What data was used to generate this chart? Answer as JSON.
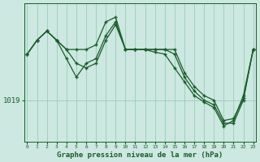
{
  "xlabel": "Graphe pression niveau de la mer (hPa)",
  "background_color": "#cce8e0",
  "plot_bg_color": "#cce8e0",
  "grid_color": "#99ccbb",
  "line_color": "#1a5c2a",
  "marker_color": "#1a5c2a",
  "hours": [
    0,
    1,
    2,
    3,
    4,
    5,
    6,
    7,
    8,
    9,
    10,
    11,
    12,
    13,
    14,
    15,
    16,
    17,
    18,
    19,
    20,
    21,
    22,
    23
  ],
  "series1": [
    1024.0,
    1025.5,
    1026.5,
    1025.5,
    1024.5,
    1024.5,
    1024.5,
    1025.0,
    1027.5,
    1028.0,
    1024.5,
    1024.5,
    1024.5,
    1024.5,
    1024.5,
    1024.5,
    1022.0,
    1020.5,
    1019.5,
    1019.0,
    1016.8,
    1017.0,
    1019.2,
    1024.5
  ],
  "series2": [
    1024.0,
    1025.5,
    1026.5,
    1025.5,
    1024.5,
    1023.0,
    1022.5,
    1023.0,
    1025.5,
    1027.2,
    1024.5,
    1024.5,
    1024.5,
    1024.5,
    1024.5,
    1024.0,
    1021.5,
    1020.0,
    1019.0,
    1018.5,
    1016.5,
    1016.5,
    1019.0,
    1024.5
  ],
  "series3": [
    1024.0,
    1025.5,
    1026.5,
    1025.5,
    1023.5,
    1021.5,
    1023.0,
    1023.5,
    1026.0,
    1027.5,
    1024.5,
    1024.5,
    1024.5,
    1024.2,
    1024.0,
    1022.5,
    1021.0,
    1019.5,
    1018.8,
    1018.2,
    1016.2,
    1016.8,
    1019.5,
    1024.5
  ],
  "ytick_value": 1019,
  "ylim_min": 1014.5,
  "ylim_max": 1029.5,
  "xlim_min": -0.3,
  "xlim_max": 23.3
}
